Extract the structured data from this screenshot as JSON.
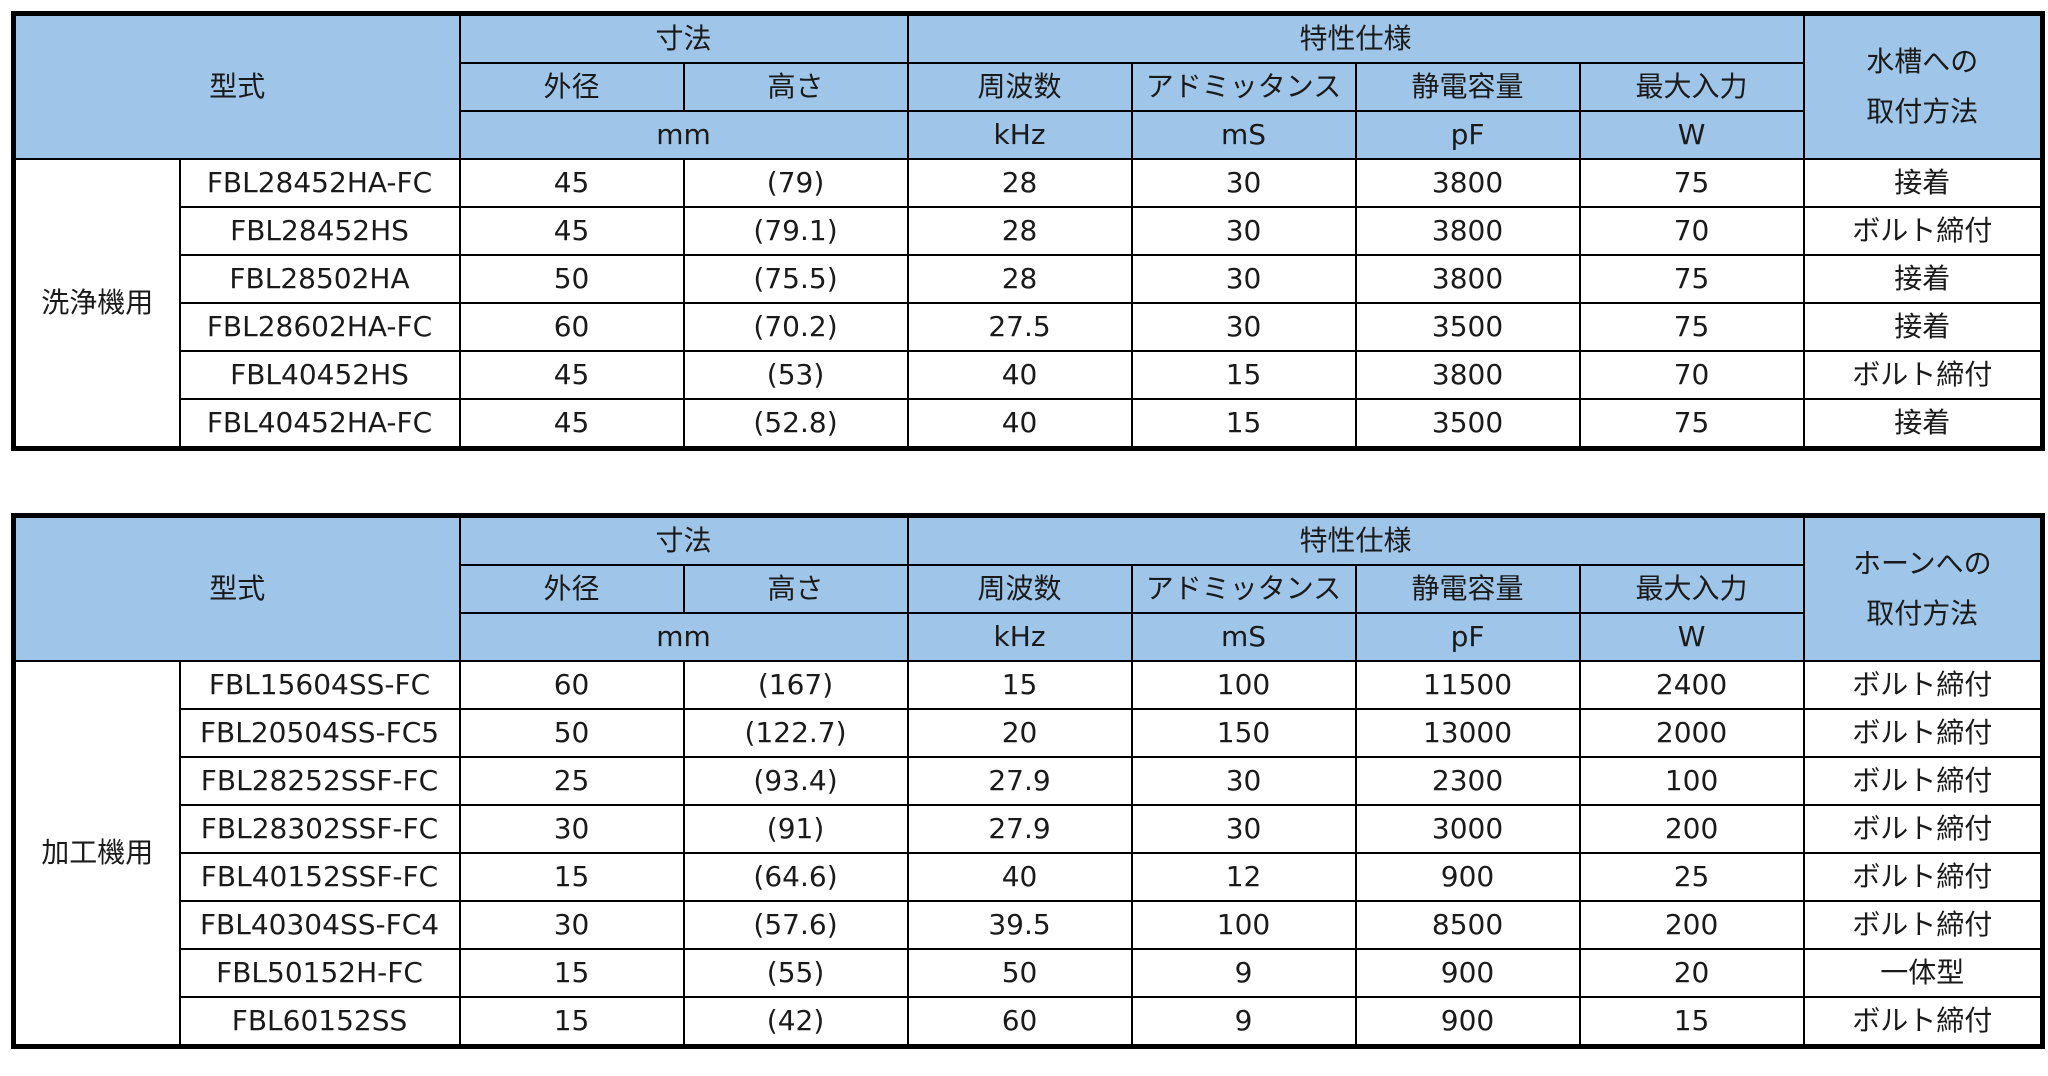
{
  "tables": [
    {
      "header": {
        "model": "型式",
        "dimensions": "寸法",
        "characteristics": "特性仕様",
        "mount_line1": "水槽への",
        "mount_line2": "取付方法",
        "outer_diameter": "外径",
        "height": "高さ",
        "frequency": "周波数",
        "admittance": "アドミッタンス",
        "capacitance": "静電容量",
        "max_input": "最大入力",
        "unit_mm": "mm",
        "unit_khz": "kHz",
        "unit_ms": "mS",
        "unit_pf": "pF",
        "unit_w": "W"
      },
      "category": "洗浄機用",
      "rows": [
        {
          "model": "FBL28452HA-FC",
          "diameter": "45",
          "height": "(79)",
          "freq": "28",
          "admittance": "30",
          "capacitance": "3800",
          "max_input": "75",
          "mount": "接着"
        },
        {
          "model": "FBL28452HS",
          "diameter": "45",
          "height": "(79.1)",
          "freq": "28",
          "admittance": "30",
          "capacitance": "3800",
          "max_input": "70",
          "mount": "ボルト締付"
        },
        {
          "model": "FBL28502HA",
          "diameter": "50",
          "height": "(75.5)",
          "freq": "28",
          "admittance": "30",
          "capacitance": "3800",
          "max_input": "75",
          "mount": "接着"
        },
        {
          "model": "FBL28602HA-FC",
          "diameter": "60",
          "height": "(70.2)",
          "freq": "27.5",
          "admittance": "30",
          "capacitance": "3500",
          "max_input": "75",
          "mount": "接着"
        },
        {
          "model": "FBL40452HS",
          "diameter": "45",
          "height": "(53)",
          "freq": "40",
          "admittance": "15",
          "capacitance": "3800",
          "max_input": "70",
          "mount": "ボルト締付"
        },
        {
          "model": "FBL40452HA-FC",
          "diameter": "45",
          "height": "(52.8)",
          "freq": "40",
          "admittance": "15",
          "capacitance": "3500",
          "max_input": "75",
          "mount": "接着"
        }
      ]
    },
    {
      "header": {
        "model": "型式",
        "dimensions": "寸法",
        "characteristics": "特性仕様",
        "mount_line1": "ホーンへの",
        "mount_line2": "取付方法",
        "outer_diameter": "外径",
        "height": "高さ",
        "frequency": "周波数",
        "admittance": "アドミッタンス",
        "capacitance": "静電容量",
        "max_input": "最大入力",
        "unit_mm": "mm",
        "unit_khz": "kHz",
        "unit_ms": "mS",
        "unit_pf": "pF",
        "unit_w": "W"
      },
      "category": "加工機用",
      "rows": [
        {
          "model": "FBL15604SS-FC",
          "diameter": "60",
          "height": "(167)",
          "freq": "15",
          "admittance": "100",
          "capacitance": "11500",
          "max_input": "2400",
          "mount": "ボルト締付"
        },
        {
          "model": "FBL20504SS-FC5",
          "diameter": "50",
          "height": "(122.7)",
          "freq": "20",
          "admittance": "150",
          "capacitance": "13000",
          "max_input": "2000",
          "mount": "ボルト締付"
        },
        {
          "model": "FBL28252SSF-FC",
          "diameter": "25",
          "height": "(93.4)",
          "freq": "27.9",
          "admittance": "30",
          "capacitance": "2300",
          "max_input": "100",
          "mount": "ボルト締付"
        },
        {
          "model": "FBL28302SSF-FC",
          "diameter": "30",
          "height": "(91)",
          "freq": "27.9",
          "admittance": "30",
          "capacitance": "3000",
          "max_input": "200",
          "mount": "ボルト締付"
        },
        {
          "model": "FBL40152SSF-FC",
          "diameter": "15",
          "height": "(64.6)",
          "freq": "40",
          "admittance": "12",
          "capacitance": "900",
          "max_input": "25",
          "mount": "ボルト締付"
        },
        {
          "model": "FBL40304SS-FC4",
          "diameter": "30",
          "height": "(57.6)",
          "freq": "39.5",
          "admittance": "100",
          "capacitance": "8500",
          "max_input": "200",
          "mount": "ボルト締付"
        },
        {
          "model": "FBL50152H-FC",
          "diameter": "15",
          "height": "(55)",
          "freq": "50",
          "admittance": "9",
          "capacitance": "900",
          "max_input": "20",
          "mount": "一体型"
        },
        {
          "model": "FBL60152SS",
          "diameter": "15",
          "height": "(42)",
          "freq": "60",
          "admittance": "9",
          "capacitance": "900",
          "max_input": "15",
          "mount": "ボルト締付"
        }
      ]
    }
  ]
}
